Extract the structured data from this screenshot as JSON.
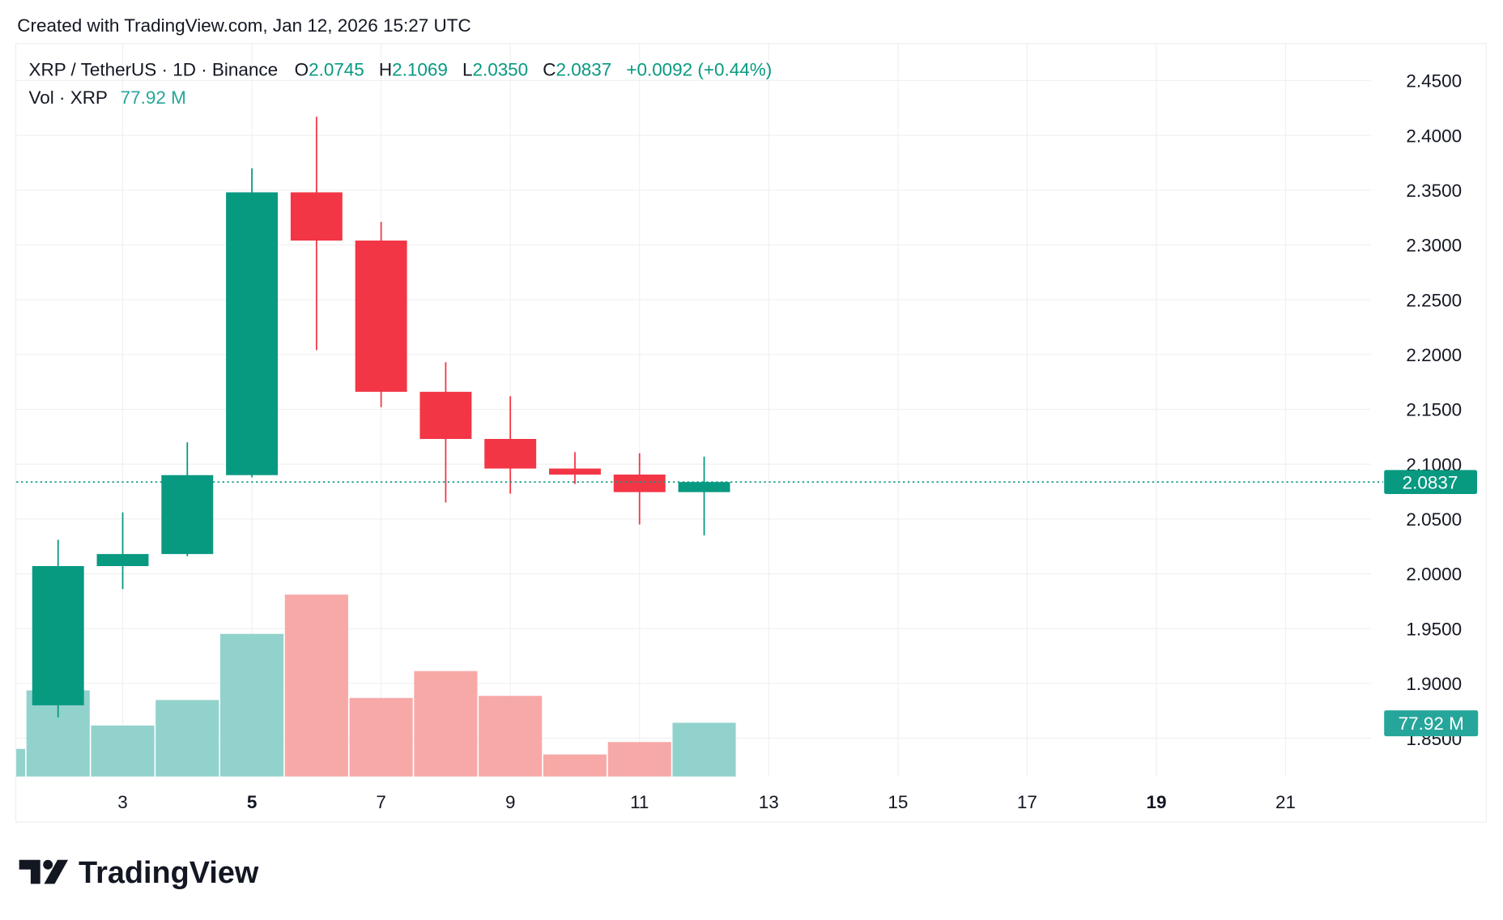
{
  "header": {
    "created_with": "Created with TradingView.com, Jan 12, 2026 15:27 UTC"
  },
  "legend": {
    "symbol": "XRP / TetherUS · 1D · Binance",
    "o_label": "O",
    "o": "2.0745",
    "h_label": "H",
    "h": "2.1069",
    "l_label": "L",
    "l": "2.0350",
    "c_label": "C",
    "c": "2.0837",
    "change": "+0.0092 (+0.44%)",
    "vol_label": "Vol · XRP",
    "vol": "77.92 M"
  },
  "price_tag": "2.0837",
  "volume_tag": "77.92 M",
  "logo": {
    "text": "TradingView"
  },
  "colors": {
    "up": "#089981",
    "down": "#f23645",
    "vol_up": "#92d2cc",
    "vol_down": "#f7a9a7",
    "grid": "#f0f0f0"
  },
  "chart_data": {
    "type": "candlestick",
    "title": "XRP / TetherUS · 1D · Binance",
    "x_ticks": [
      {
        "day": 3,
        "label": "3",
        "bold": false
      },
      {
        "day": 5,
        "label": "5",
        "bold": true
      },
      {
        "day": 7,
        "label": "7",
        "bold": false
      },
      {
        "day": 9,
        "label": "9",
        "bold": false
      },
      {
        "day": 11,
        "label": "11",
        "bold": false
      },
      {
        "day": 13,
        "label": "13",
        "bold": false
      },
      {
        "day": 15,
        "label": "15",
        "bold": false
      },
      {
        "day": 17,
        "label": "17",
        "bold": false
      },
      {
        "day": 19,
        "label": "19",
        "bold": true
      },
      {
        "day": 21,
        "label": "21",
        "bold": false
      }
    ],
    "y_ticks": [
      "2.4500",
      "2.4000",
      "2.3500",
      "2.3000",
      "2.2500",
      "2.2000",
      "2.1500",
      "2.1000",
      "2.0500",
      "2.0000",
      "1.9500",
      "1.9000",
      "1.8500"
    ],
    "ylim": [
      1.82,
      2.47
    ],
    "xlim": [
      1,
      24
    ],
    "grid": true,
    "last_price": 2.0837,
    "candles": [
      {
        "day": 2,
        "open": 1.88,
        "high": 2.031,
        "low": 1.869,
        "close": 2.007,
        "volume_m": 125
      },
      {
        "day": 3,
        "open": 2.007,
        "high": 2.056,
        "low": 1.986,
        "close": 2.018,
        "volume_m": 74
      },
      {
        "day": 4,
        "open": 2.018,
        "high": 2.12,
        "low": 2.016,
        "close": 2.09,
        "volume_m": 111
      },
      {
        "day": 5,
        "open": 2.09,
        "high": 2.37,
        "low": 2.088,
        "close": 2.348,
        "volume_m": 207
      },
      {
        "day": 6,
        "open": 2.348,
        "high": 2.417,
        "low": 2.204,
        "close": 2.304,
        "volume_m": 264
      },
      {
        "day": 7,
        "open": 2.304,
        "high": 2.321,
        "low": 2.152,
        "close": 2.166,
        "volume_m": 114
      },
      {
        "day": 8,
        "open": 2.166,
        "high": 2.193,
        "low": 2.065,
        "close": 2.123,
        "volume_m": 153
      },
      {
        "day": 9,
        "open": 2.123,
        "high": 2.162,
        "low": 2.073,
        "close": 2.096,
        "volume_m": 117
      },
      {
        "day": 10,
        "open": 2.096,
        "high": 2.111,
        "low": 2.082,
        "close": 2.0905,
        "volume_m": 32
      },
      {
        "day": 11,
        "open": 2.0905,
        "high": 2.11,
        "low": 2.045,
        "close": 2.0745,
        "volume_m": 50
      },
      {
        "day": 12,
        "open": 2.0745,
        "high": 2.1069,
        "low": 2.035,
        "close": 2.0837,
        "volume_m": 77.92
      }
    ],
    "partial_volume": {
      "day": 1,
      "volume_m": 40,
      "direction": "up"
    }
  }
}
